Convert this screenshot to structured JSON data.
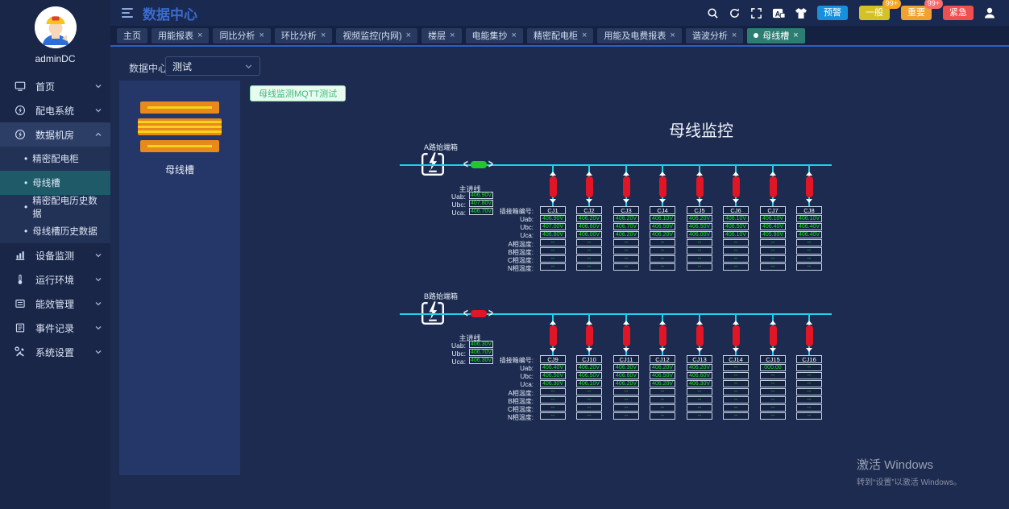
{
  "user": {
    "name": "adminDC"
  },
  "header": {
    "title": "数据中心",
    "alarm_buttons": [
      {
        "label": "预警",
        "color": "#1690dc",
        "badge": "",
        "badge_color": ""
      },
      {
        "label": "一般",
        "color": "#d4c125",
        "badge": "99+",
        "badge_color": "#f5a623"
      },
      {
        "label": "重要",
        "color": "#efa22d",
        "badge": "99+",
        "badge_color": "#f56c6c"
      },
      {
        "label": "紧急",
        "color": "#ef4f4f",
        "badge": "",
        "badge_color": ""
      }
    ]
  },
  "tabs": [
    {
      "label": "主页",
      "closable": false,
      "active": false
    },
    {
      "label": "用能报表",
      "closable": true,
      "active": false
    },
    {
      "label": "同比分析",
      "closable": true,
      "active": false
    },
    {
      "label": "环比分析",
      "closable": true,
      "active": false
    },
    {
      "label": "视频监控(内网)",
      "closable": true,
      "active": false
    },
    {
      "label": "楼层",
      "closable": true,
      "active": false
    },
    {
      "label": "电能集抄",
      "closable": true,
      "active": false
    },
    {
      "label": "精密配电柜",
      "closable": true,
      "active": false
    },
    {
      "label": "用能及电费报表",
      "closable": true,
      "active": false
    },
    {
      "label": "谐波分析",
      "closable": true,
      "active": false
    },
    {
      "label": "母线槽",
      "closable": true,
      "active": true
    }
  ],
  "sidebar": {
    "items": [
      {
        "label": "首页",
        "icon": "monitor-icon",
        "chevron": "down"
      },
      {
        "label": "配电系统",
        "icon": "power-icon",
        "chevron": "down"
      },
      {
        "label": "数据机房",
        "icon": "power-icon",
        "chevron": "up",
        "expanded": true,
        "children": [
          {
            "label": "精密配电柜",
            "selected": false
          },
          {
            "label": "母线槽",
            "selected": true
          },
          {
            "label": "精密配电历史数据",
            "selected": false
          },
          {
            "label": "母线槽历史数据",
            "selected": false
          }
        ]
      },
      {
        "label": "设备监测",
        "icon": "chart-icon",
        "chevron": "down"
      },
      {
        "label": "运行环境",
        "icon": "environment-icon",
        "chevron": "down"
      },
      {
        "label": "能效管理",
        "icon": "energy-icon",
        "chevron": "down"
      },
      {
        "label": "事件记录",
        "icon": "events-icon",
        "chevron": "down"
      },
      {
        "label": "系统设置",
        "icon": "settings-icon",
        "chevron": "down"
      }
    ]
  },
  "toolbar": {
    "datacenter_label": "数据中心",
    "selected_option": "测试",
    "mqtt_button": "母线监测MQTT测试"
  },
  "left_panel": {
    "device_label": "母线槽"
  },
  "diagram": {
    "title": "母线监控",
    "main_line_label": "主进线",
    "voltage_labels": [
      "Uab:",
      "Ubc:",
      "Uca:"
    ],
    "row_labels": [
      "插接箱编号:",
      "Uab:",
      "Ubc:",
      "Uca:",
      "A相温度:",
      "B相温度:",
      "C相温度:",
      "N相温度:"
    ],
    "sections": [
      {
        "name": "A路始端箱",
        "connector_color": "#25c432",
        "main_line": {
          "Uab": "406.90V",
          "Ubc": "407.80V",
          "Uca": "406.70V"
        },
        "columns": [
          {
            "id": "CJ1",
            "values": [
              "406.90V",
              "407.00V",
              "406.80V",
              "--",
              "--",
              "--",
              "--"
            ]
          },
          {
            "id": "CJ2",
            "values": [
              "406.20V",
              "406.60V",
              "406.00V",
              "--",
              "--",
              "--",
              "--"
            ]
          },
          {
            "id": "CJ3",
            "values": [
              "406.20V",
              "406.70V",
              "406.20V",
              "--",
              "--",
              "--",
              "--"
            ]
          },
          {
            "id": "CJ4",
            "values": [
              "406.10V",
              "406.50V",
              "406.20V",
              "--",
              "--",
              "--",
              "--"
            ]
          },
          {
            "id": "CJ5",
            "values": [
              "406.20V",
              "406.50V",
              "406.00V",
              "--",
              "--",
              "--",
              "--"
            ]
          },
          {
            "id": "CJ6",
            "values": [
              "406.10V",
              "406.50V",
              "406.10V",
              "--",
              "--",
              "--",
              "--"
            ]
          },
          {
            "id": "CJ7",
            "values": [
              "406.10V",
              "406.40V",
              "405.90V",
              "--",
              "--",
              "--",
              "--"
            ]
          },
          {
            "id": "CJ8",
            "values": [
              "406.10V",
              "406.40V",
              "406.40V",
              "--",
              "--",
              "--",
              "--"
            ]
          }
        ]
      },
      {
        "name": "B路始端箱",
        "connector_color": "#e01525",
        "main_line": {
          "Uab": "406.30V",
          "Ubc": "406.70V",
          "Uca": "406.30V"
        },
        "columns": [
          {
            "id": "CJ9",
            "values": [
              "406.40V",
              "406.50V",
              "406.30V",
              "--",
              "--",
              "--",
              "--"
            ]
          },
          {
            "id": "CJ10",
            "values": [
              "406.20V",
              "406.50V",
              "406.10V",
              "--",
              "--",
              "--",
              "--"
            ]
          },
          {
            "id": "CJ11",
            "values": [
              "406.30V",
              "406.60V",
              "406.20V",
              "--",
              "--",
              "--",
              "--"
            ]
          },
          {
            "id": "CJ12",
            "values": [
              "406.20V",
              "406.50V",
              "406.20V",
              "--",
              "--",
              "--",
              "--"
            ]
          },
          {
            "id": "CJ13",
            "values": [
              "406.20V",
              "406.60V",
              "406.30V",
              "--",
              "--",
              "--",
              "--"
            ]
          },
          {
            "id": "CJ14",
            "values": [
              "--",
              "--",
              "--",
              "--",
              "--",
              "--",
              "--"
            ]
          },
          {
            "id": "CJ15",
            "values": [
              "000.00",
              "--",
              "--",
              "--",
              "--",
              "--",
              "--"
            ]
          },
          {
            "id": "CJ16",
            "values": [
              "--",
              "--",
              "--",
              "--",
              "--",
              "--",
              "--"
            ]
          }
        ]
      }
    ]
  },
  "watermark": {
    "line1": "激活 Windows",
    "line2": "转到“设置”以激活 Windows。"
  },
  "colors": {
    "accent_blue": "#3a6bd0",
    "bus_cyan": "#1fd0e8",
    "value_green": "#17e417",
    "tap_red": "#e01525",
    "active_tab": "#2c7d72",
    "sidebar_selected": "#1e5a68"
  }
}
